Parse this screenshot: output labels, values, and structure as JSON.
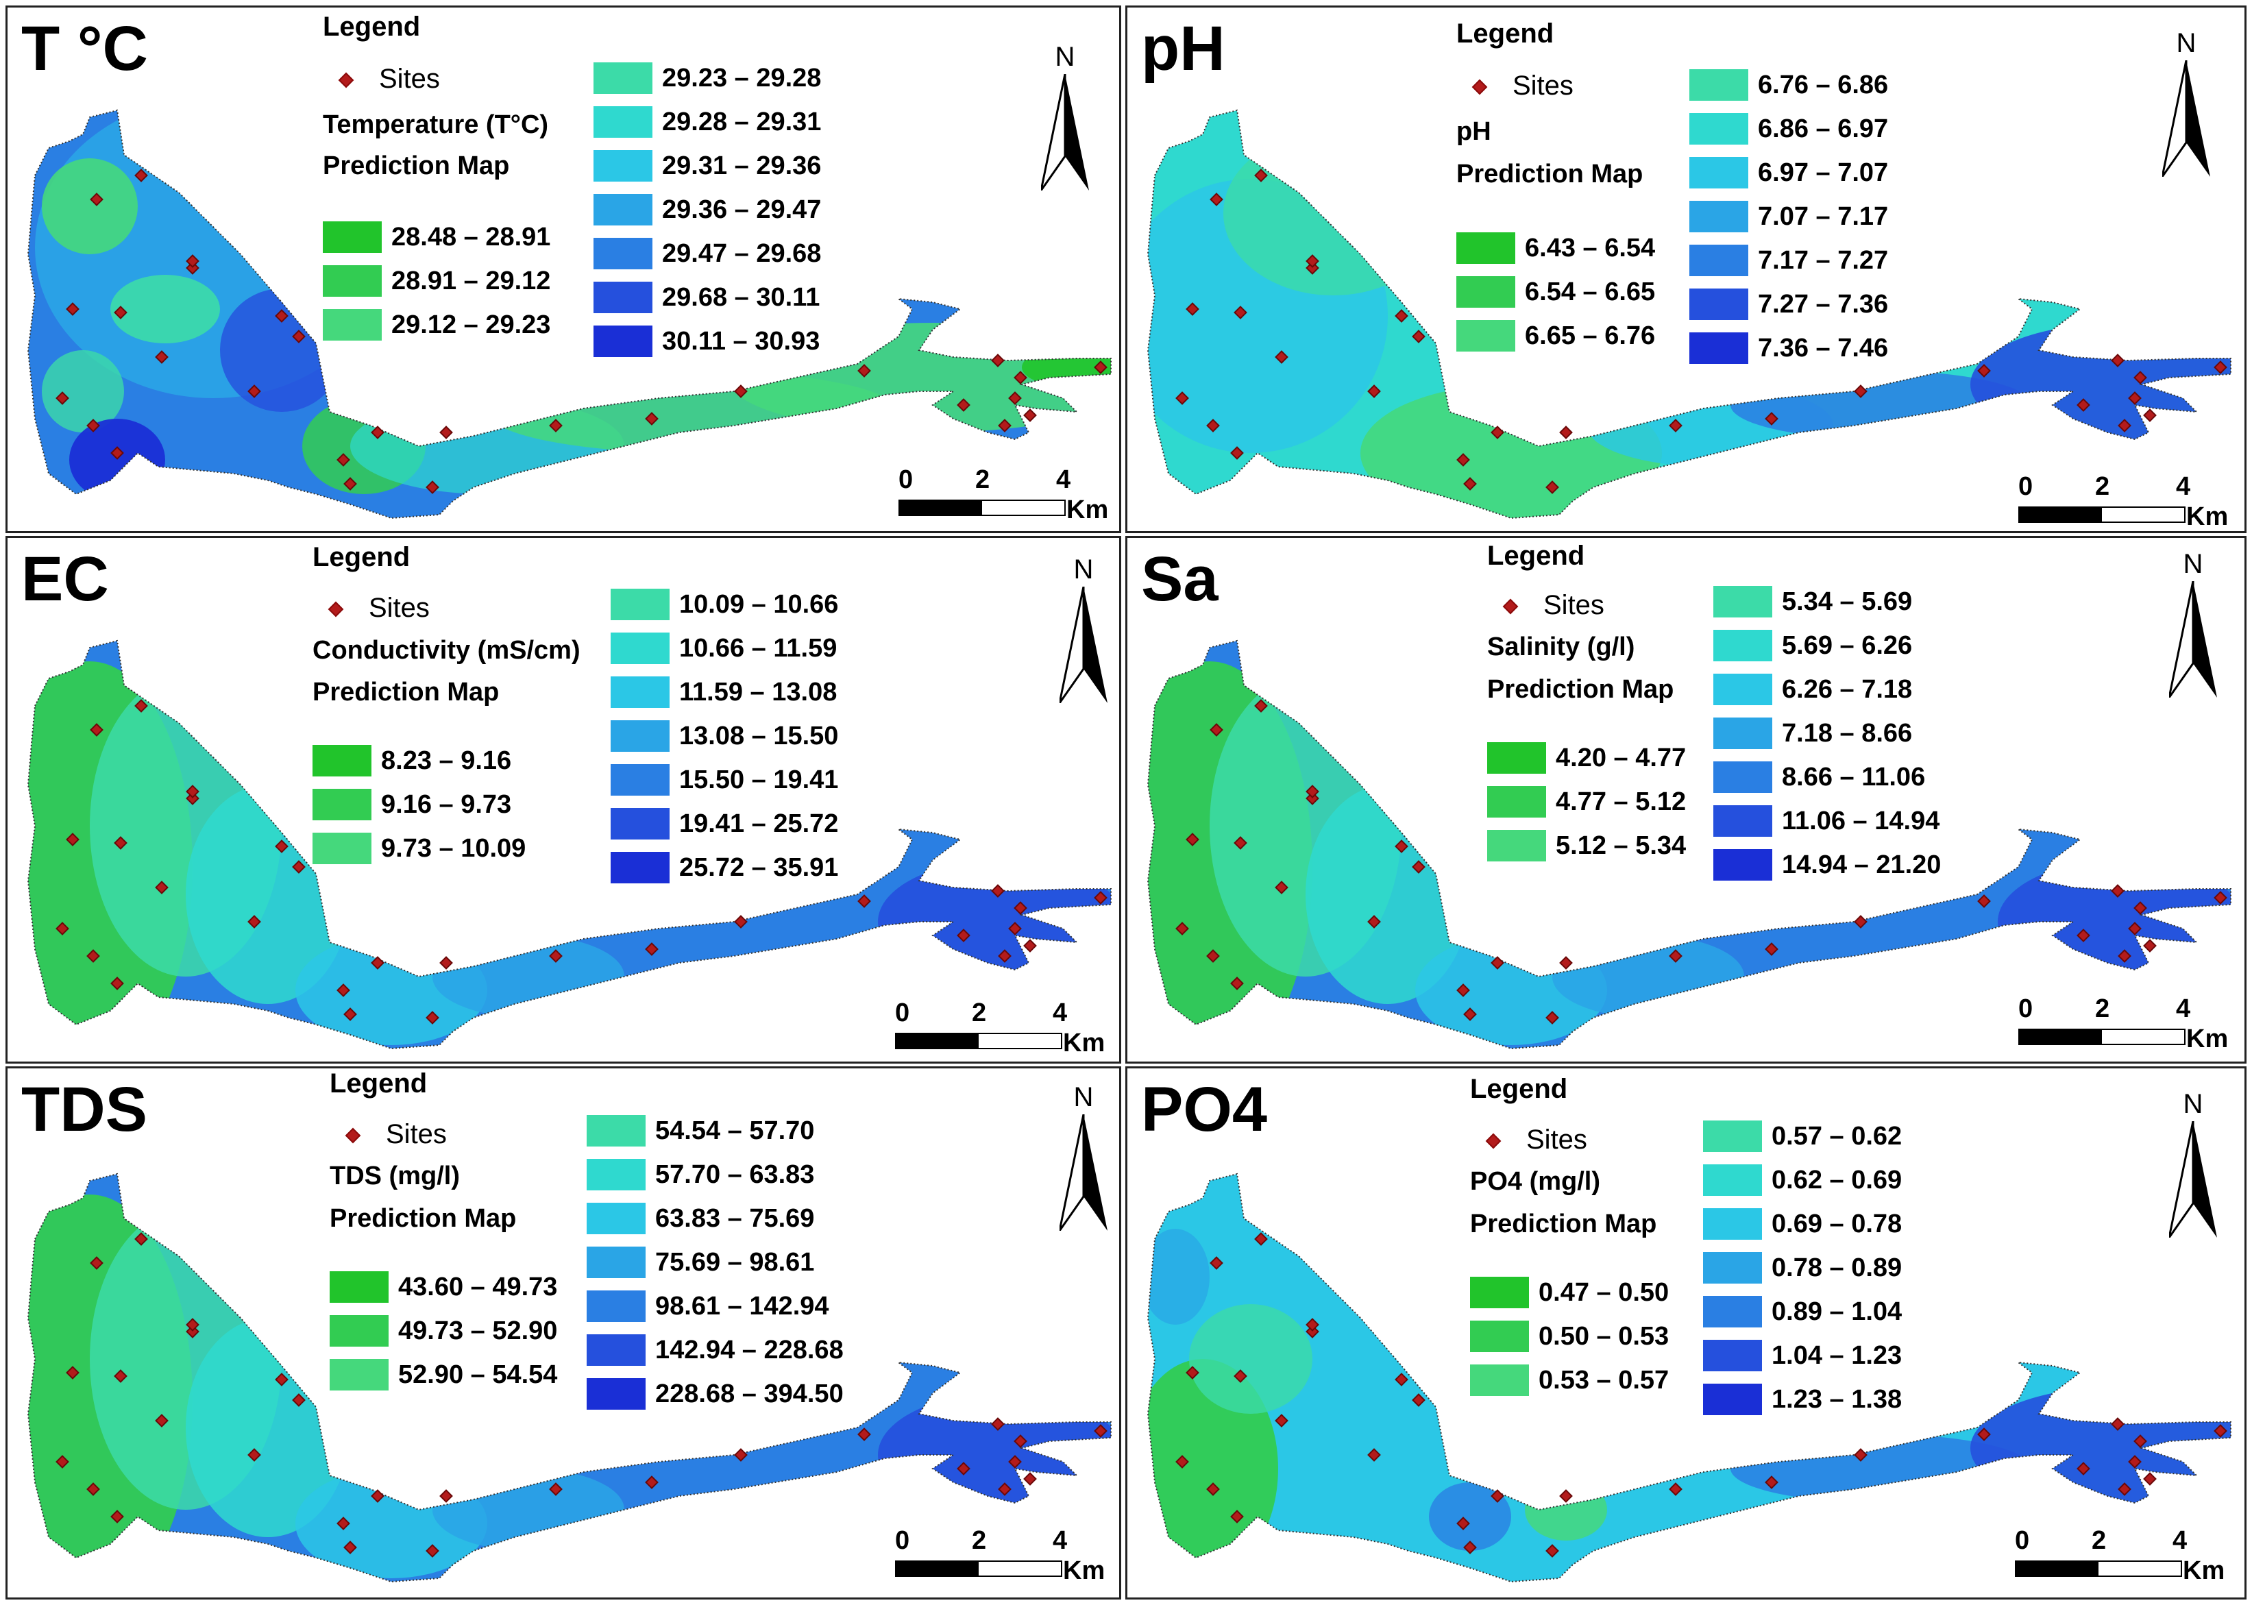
{
  "colors": {
    "ramp": [
      "#21c42b",
      "#32cc52",
      "#45d87c",
      "#3cdba8",
      "#2fd9cf",
      "#2bc7e6",
      "#2aa5e6",
      "#2a7fe3",
      "#2550dd",
      "#1a2fd6"
    ],
    "site": "#b31b1b",
    "border": "#222222"
  },
  "legend_common": {
    "legend_title": "Legend",
    "sites_label": "Sites",
    "prediction_label": "Prediction Map",
    "north_label": "N"
  },
  "scale": {
    "ticks": [
      "0",
      "2",
      "4"
    ],
    "unit": "Km"
  },
  "panels": [
    {
      "title": "T °C",
      "variable_label": "Temperature (T°C)",
      "ranges": [
        "28.48 – 28.91",
        "28.91 – 29.12",
        "29.12 – 29.23",
        "29.23 – 29.28",
        "29.28 – 29.31",
        "29.31 – 29.36",
        "29.36 – 29.47",
        "29.47 – 29.68",
        "29.68 – 30.11",
        "30.11 – 30.93"
      ]
    },
    {
      "title": "pH",
      "variable_label": "pH",
      "ranges": [
        "6.43 – 6.54",
        "6.54 – 6.65",
        "6.65 – 6.76",
        "6.76 – 6.86",
        "6.86 – 6.97",
        "6.97 – 7.07",
        "7.07 – 7.17",
        "7.17 – 7.27",
        "7.27 – 7.36",
        "7.36 – 7.46"
      ]
    },
    {
      "title": "EC",
      "variable_label": "Conductivity (mS/cm)",
      "ranges": [
        "8.23 – 9.16",
        "9.16 – 9.73",
        "9.73 – 10.09",
        "10.09 – 10.66",
        "10.66 – 11.59",
        "11.59 – 13.08",
        "13.08 – 15.50",
        "15.50 – 19.41",
        "19.41 – 25.72",
        "25.72 – 35.91"
      ]
    },
    {
      "title": "Sa",
      "variable_label": "Salinity (g/l)",
      "ranges": [
        "4.20 – 4.77",
        "4.77 – 5.12",
        "5.12 – 5.34",
        "5.34 – 5.69",
        "5.69 – 6.26",
        "6.26 – 7.18",
        "7.18 – 8.66",
        "8.66 – 11.06",
        "11.06 – 14.94",
        "14.94 – 21.20"
      ]
    },
    {
      "title": "TDS",
      "variable_label": "TDS (mg/l)",
      "ranges": [
        "43.60 – 49.73",
        "49.73 – 52.90",
        "52.90 – 54.54",
        "54.54 – 57.70",
        "57.70 – 63.83",
        "63.83 – 75.69",
        "75.69 – 98.61",
        "98.61 – 142.94",
        "142.94 – 228.68",
        "228.68 – 394.50"
      ]
    },
    {
      "title": "PO4",
      "variable_label": "PO4 (mg/l)",
      "ranges": [
        "0.47 – 0.50",
        "0.50 – 0.53",
        "0.53 – 0.57",
        "0.57 – 0.62",
        "0.62 – 0.69",
        "0.69 – 0.78",
        "0.78 – 0.89",
        "0.89 – 1.04",
        "1.04 – 1.23",
        "1.23 – 1.38"
      ]
    }
  ]
}
